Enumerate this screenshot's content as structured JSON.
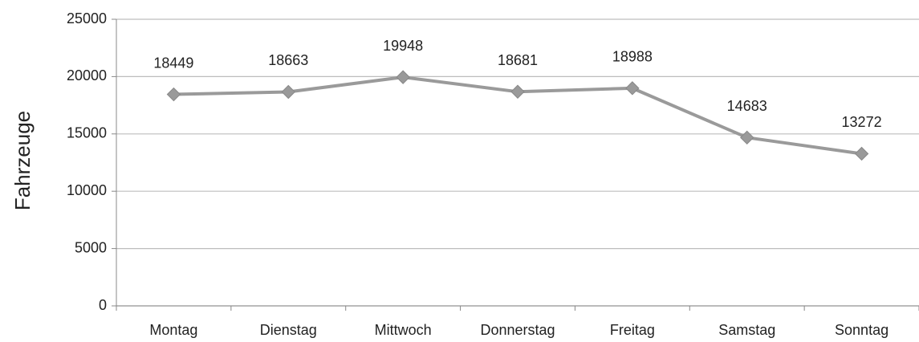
{
  "chart_data": {
    "type": "line",
    "y_label": "Fahrzeuge",
    "categories": [
      "Montag",
      "Dienstag",
      "Mittwoch",
      "Donnerstag",
      "Freitag",
      "Samstag",
      "Sonntag"
    ],
    "values": [
      18449,
      18663,
      19948,
      18681,
      18988,
      14683,
      13272
    ],
    "color": "#9a9a9a",
    "ylim": [
      0,
      25000
    ],
    "yticks": [
      0,
      5000,
      10000,
      15000,
      20000,
      25000
    ],
    "grid": true
  }
}
